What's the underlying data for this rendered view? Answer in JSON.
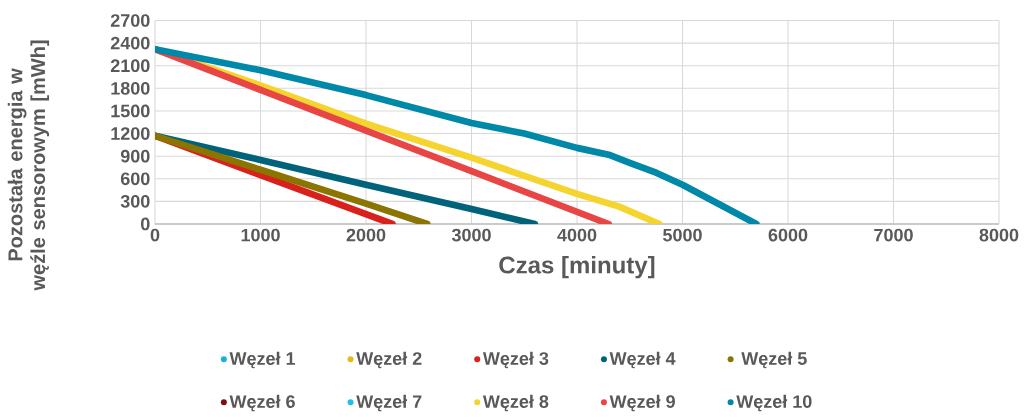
{
  "chart_data": {
    "type": "line",
    "xlabel": "Czas [minuty]",
    "ylabel": "Pozostała energia w węźle sensorowym [mWh]",
    "xlim": [
      0,
      8000
    ],
    "xticks": [
      0,
      1000,
      2000,
      3000,
      4000,
      5000,
      6000,
      7000,
      8000
    ],
    "ylim": [
      0,
      2700
    ],
    "yticks": [
      0,
      300,
      600,
      900,
      1200,
      1500,
      1800,
      2100,
      2400,
      2700
    ],
    "grid": true,
    "legend": "bottom",
    "marker": "none",
    "line_style": "solid",
    "series": [
      {
        "name": "Węzeł 1",
        "color": "#1ab0d8"
      },
      {
        "name": "Węzeł 2",
        "color": "#e8b81a"
      },
      {
        "name": "Węzeł 3",
        "color": "#d8201c",
        "x": [
          0,
          1000,
          2250
        ],
        "values": [
          1170,
          650,
          0
        ]
      },
      {
        "name": "Węzeł 4",
        "color": "#00637a",
        "x": [
          0,
          1000,
          2000,
          3000,
          3600
        ],
        "values": [
          1170,
          850,
          520,
          200,
          0
        ]
      },
      {
        "name": "Węzeł 5",
        "color": "#8b7500",
        "x": [
          0,
          1000,
          2000,
          2580
        ],
        "values": [
          1170,
          720,
          270,
          0
        ]
      },
      {
        "name": "Węzeł 6",
        "color": "#7a1010"
      },
      {
        "name": "Węzeł 7",
        "color": "#20c0e8"
      },
      {
        "name": "Węzeł 8",
        "color": "#f5d430",
        "x": [
          0,
          1000,
          2000,
          3000,
          4000,
          4400,
          4780
        ],
        "values": [
          2320,
          1840,
          1330,
          880,
          400,
          230,
          0
        ]
      },
      {
        "name": "Węzeł 9",
        "color": "#e84545",
        "x": [
          0,
          1000,
          2000,
          3000,
          4300
        ],
        "values": [
          2320,
          1780,
          1240,
          700,
          0
        ]
      },
      {
        "name": "Węzeł 10",
        "color": "#0088a8",
        "x": [
          0,
          1000,
          2000,
          3000,
          3500,
          4000,
          4300,
          4500,
          4750,
          5000,
          5700
        ],
        "values": [
          2320,
          2040,
          1710,
          1340,
          1200,
          1010,
          920,
          810,
          680,
          520,
          0
        ]
      }
    ]
  }
}
